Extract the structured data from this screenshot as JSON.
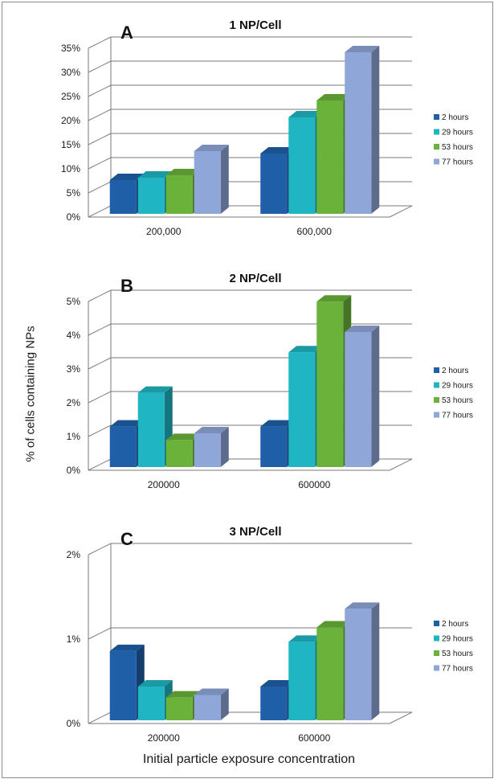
{
  "ylabel_shared": "% of cells containing NPs",
  "xlabel_shared": "Initial particle exposure concentration",
  "chart_data": [
    {
      "type": "bar",
      "panel": "A",
      "title": "1 NP/Cell",
      "categories": [
        "200,000",
        "600,000"
      ],
      "series": [
        {
          "name": "2 hours",
          "values": [
            7,
            12.5
          ],
          "color": "#1f5fa8"
        },
        {
          "name": "29 hours",
          "values": [
            7.5,
            20
          ],
          "color": "#1fb5c2"
        },
        {
          "name": "53 hours",
          "values": [
            8,
            23.5
          ],
          "color": "#6ab23a"
        },
        {
          "name": "77 hours",
          "values": [
            13,
            33.5
          ],
          "color": "#8fa6d8"
        }
      ],
      "ylim": [
        0,
        35
      ],
      "yticks": [
        0,
        5,
        10,
        15,
        20,
        25,
        30,
        35
      ],
      "ytick_labels": [
        "0%",
        "5%",
        "10%",
        "15%",
        "20%",
        "25%",
        "30%",
        "35%"
      ]
    },
    {
      "type": "bar",
      "panel": "B",
      "title": "2 NP/Cell",
      "categories": [
        "200000",
        "600000"
      ],
      "series": [
        {
          "name": "2 hours",
          "values": [
            1.2,
            1.2
          ],
          "color": "#1f5fa8"
        },
        {
          "name": "29 hours",
          "values": [
            2.2,
            3.4
          ],
          "color": "#1fb5c2"
        },
        {
          "name": "53 hours",
          "values": [
            0.8,
            4.9
          ],
          "color": "#6ab23a"
        },
        {
          "name": "77 hours",
          "values": [
            1.0,
            4.0
          ],
          "color": "#8fa6d8"
        }
      ],
      "ylim": [
        0,
        5
      ],
      "yticks": [
        0,
        1,
        2,
        3,
        4,
        5
      ],
      "ytick_labels": [
        "0%",
        "1%",
        "2%",
        "3%",
        "4%",
        "5%"
      ]
    },
    {
      "type": "bar",
      "panel": "C",
      "title": "3 NP/Cell",
      "categories": [
        "200000",
        "600000"
      ],
      "series": [
        {
          "name": "2 hours",
          "values": [
            0.82,
            0.4
          ],
          "color": "#1f5fa8"
        },
        {
          "name": "29 hours",
          "values": [
            0.4,
            0.93
          ],
          "color": "#1fb5c2"
        },
        {
          "name": "53 hours",
          "values": [
            0.27,
            1.1
          ],
          "color": "#6ab23a"
        },
        {
          "name": "77 hours",
          "values": [
            0.3,
            1.32
          ],
          "color": "#8fa6d8"
        }
      ],
      "ylim": [
        0,
        2
      ],
      "yticks": [
        0,
        1,
        2
      ],
      "ytick_labels": [
        "0%",
        "1%",
        "2%"
      ]
    }
  ]
}
